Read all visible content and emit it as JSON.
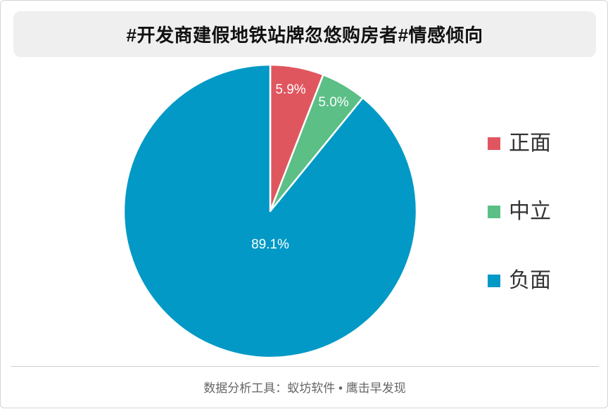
{
  "footer": "数据分析工具：蚁坊软件 • 鹰击早发现",
  "chart_data": {
    "type": "pie",
    "title": "#开发商建假地铁站牌忽悠购房者#情感倾向",
    "categories": [
      "正面",
      "中立",
      "负面"
    ],
    "values": [
      5.9,
      5.0,
      89.1
    ],
    "labels": [
      "5.9%",
      "5.0%",
      "89.1%"
    ],
    "colors": [
      "#e0565f",
      "#5bbf86",
      "#0299c6"
    ],
    "start": "top",
    "direction": "clockwise",
    "legend": "right"
  }
}
